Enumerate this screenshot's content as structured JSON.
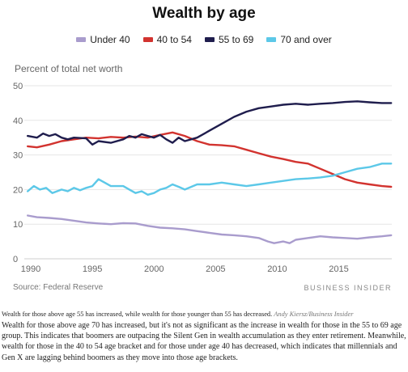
{
  "chart_data": {
    "type": "line",
    "title": "Wealth by age",
    "ylabel": "Percent of total net worth",
    "xlabel": "",
    "xlim": [
      1990,
      2019.3
    ],
    "ylim": [
      0,
      50
    ],
    "xticks": [
      1990,
      1995,
      2000,
      2005,
      2010,
      2015
    ],
    "yticks": [
      0,
      10,
      20,
      30,
      40,
      50
    ],
    "grid": true,
    "legend_position": "top",
    "series": [
      {
        "name": "Under 40",
        "color": "#a99ccd",
        "points": [
          [
            1989.75,
            12.5
          ],
          [
            1990.5,
            12
          ],
          [
            1991.5,
            11.8
          ],
          [
            1992.5,
            11.5
          ],
          [
            1993.5,
            11
          ],
          [
            1994.5,
            10.5
          ],
          [
            1995.5,
            10.2
          ],
          [
            1996.5,
            10
          ],
          [
            1997.5,
            10.3
          ],
          [
            1998.5,
            10.2
          ],
          [
            1999.5,
            9.5
          ],
          [
            2000.5,
            9
          ],
          [
            2001.5,
            8.8
          ],
          [
            2002.5,
            8.5
          ],
          [
            2003.5,
            8
          ],
          [
            2004.5,
            7.5
          ],
          [
            2005.5,
            7
          ],
          [
            2006.5,
            6.8
          ],
          [
            2007.5,
            6.5
          ],
          [
            2008.5,
            6
          ],
          [
            2009.25,
            5
          ],
          [
            2009.75,
            4.5
          ],
          [
            2010.5,
            5
          ],
          [
            2011,
            4.5
          ],
          [
            2011.5,
            5.5
          ],
          [
            2012.5,
            6
          ],
          [
            2013.5,
            6.5
          ],
          [
            2014.5,
            6.2
          ],
          [
            2015.5,
            6
          ],
          [
            2016.5,
            5.8
          ],
          [
            2017.5,
            6.2
          ],
          [
            2018.5,
            6.5
          ],
          [
            2019.25,
            6.8
          ]
        ]
      },
      {
        "name": "40 to 54",
        "color": "#d2332f",
        "points": [
          [
            1989.75,
            32.5
          ],
          [
            1990.5,
            32.2
          ],
          [
            1991.5,
            33
          ],
          [
            1992.5,
            34
          ],
          [
            1993.5,
            34.5
          ],
          [
            1994.5,
            35
          ],
          [
            1995.5,
            34.8
          ],
          [
            1996.5,
            35.2
          ],
          [
            1997.5,
            35
          ],
          [
            1998.5,
            35.3
          ],
          [
            1999.5,
            35
          ],
          [
            2000.5,
            35.8
          ],
          [
            2001.5,
            36.5
          ],
          [
            2002.5,
            35.5
          ],
          [
            2003.5,
            34
          ],
          [
            2004.5,
            33
          ],
          [
            2005.5,
            32.8
          ],
          [
            2006.5,
            32.5
          ],
          [
            2007.5,
            31.5
          ],
          [
            2008.5,
            30.5
          ],
          [
            2009.5,
            29.5
          ],
          [
            2010.5,
            28.8
          ],
          [
            2011.5,
            28
          ],
          [
            2012.5,
            27.5
          ],
          [
            2013.5,
            26
          ],
          [
            2014.5,
            24.5
          ],
          [
            2015.5,
            23
          ],
          [
            2016.5,
            22
          ],
          [
            2017.5,
            21.5
          ],
          [
            2018.5,
            21
          ],
          [
            2019.25,
            20.8
          ]
        ]
      },
      {
        "name": "55 to 69",
        "color": "#1f1d4d",
        "points": [
          [
            1989.75,
            35.5
          ],
          [
            1990.5,
            35
          ],
          [
            1991,
            36.2
          ],
          [
            1991.5,
            35.5
          ],
          [
            1992,
            36
          ],
          [
            1992.5,
            35
          ],
          [
            1993,
            34.5
          ],
          [
            1993.5,
            35
          ],
          [
            1994.5,
            34.8
          ],
          [
            1995,
            33
          ],
          [
            1995.5,
            34
          ],
          [
            1996.5,
            33.5
          ],
          [
            1997.5,
            34.5
          ],
          [
            1998,
            35.5
          ],
          [
            1998.5,
            35
          ],
          [
            1999,
            36
          ],
          [
            1999.5,
            35.5
          ],
          [
            2000,
            35
          ],
          [
            2000.5,
            35.8
          ],
          [
            2001,
            34.5
          ],
          [
            2001.5,
            33.5
          ],
          [
            2002,
            35
          ],
          [
            2002.5,
            34
          ],
          [
            2003.5,
            35
          ],
          [
            2004.5,
            37
          ],
          [
            2005.5,
            39
          ],
          [
            2006.5,
            41
          ],
          [
            2007.5,
            42.5
          ],
          [
            2008.5,
            43.5
          ],
          [
            2009.5,
            44
          ],
          [
            2010.5,
            44.5
          ],
          [
            2011.5,
            44.8
          ],
          [
            2012.5,
            44.5
          ],
          [
            2013.5,
            44.8
          ],
          [
            2014.5,
            45
          ],
          [
            2015.5,
            45.3
          ],
          [
            2016.5,
            45.5
          ],
          [
            2017.5,
            45.2
          ],
          [
            2018.5,
            45
          ],
          [
            2019.25,
            45
          ]
        ]
      },
      {
        "name": "70 and over",
        "color": "#5cc8e8",
        "points": [
          [
            1989.75,
            19.5
          ],
          [
            1990.25,
            21
          ],
          [
            1990.75,
            20
          ],
          [
            1991.25,
            20.5
          ],
          [
            1991.75,
            19
          ],
          [
            1992.5,
            20
          ],
          [
            1993,
            19.5
          ],
          [
            1993.5,
            20.5
          ],
          [
            1994,
            19.8
          ],
          [
            1994.5,
            20.5
          ],
          [
            1995,
            21
          ],
          [
            1995.5,
            23
          ],
          [
            1996,
            22
          ],
          [
            1996.5,
            21
          ],
          [
            1997.5,
            21
          ],
          [
            1998,
            20
          ],
          [
            1998.5,
            19
          ],
          [
            1999,
            19.5
          ],
          [
            1999.5,
            18.5
          ],
          [
            2000,
            19
          ],
          [
            2000.5,
            20
          ],
          [
            2001,
            20.5
          ],
          [
            2001.5,
            21.5
          ],
          [
            2002,
            20.8
          ],
          [
            2002.5,
            20
          ],
          [
            2003.5,
            21.5
          ],
          [
            2004.5,
            21.5
          ],
          [
            2005.5,
            22
          ],
          [
            2006.5,
            21.5
          ],
          [
            2007.5,
            21
          ],
          [
            2008.5,
            21.5
          ],
          [
            2009.5,
            22
          ],
          [
            2010.5,
            22.5
          ],
          [
            2011.5,
            23
          ],
          [
            2012.5,
            23.2
          ],
          [
            2013.5,
            23.5
          ],
          [
            2014.5,
            24
          ],
          [
            2015.5,
            25
          ],
          [
            2016.5,
            26
          ],
          [
            2017.5,
            26.5
          ],
          [
            2018.5,
            27.5
          ],
          [
            2019.25,
            27.5
          ]
        ]
      }
    ],
    "source": "Source: Federal Reserve",
    "brand": "BUSINESS INSIDER"
  },
  "caption": {
    "text": "Wealth for those above age 55 has increased, while wealth for those younger than 55 has decreased.",
    "credit": "Andy Kiersz/Business Insider"
  },
  "body_text": "Wealth for those above age 70 has increased, but it's not as significant as the increase in wealth for those in the 55 to 69 age group. This indicates that boomers are outpacing the Silent Gen in wealth accumulation as they enter retirement. Meanwhile, wealth for those in the 40 to 54 age bracket and for those under age 40 has decreased, which indicates that millennials and Gen X are lagging behind boomers as they move into those age brackets."
}
